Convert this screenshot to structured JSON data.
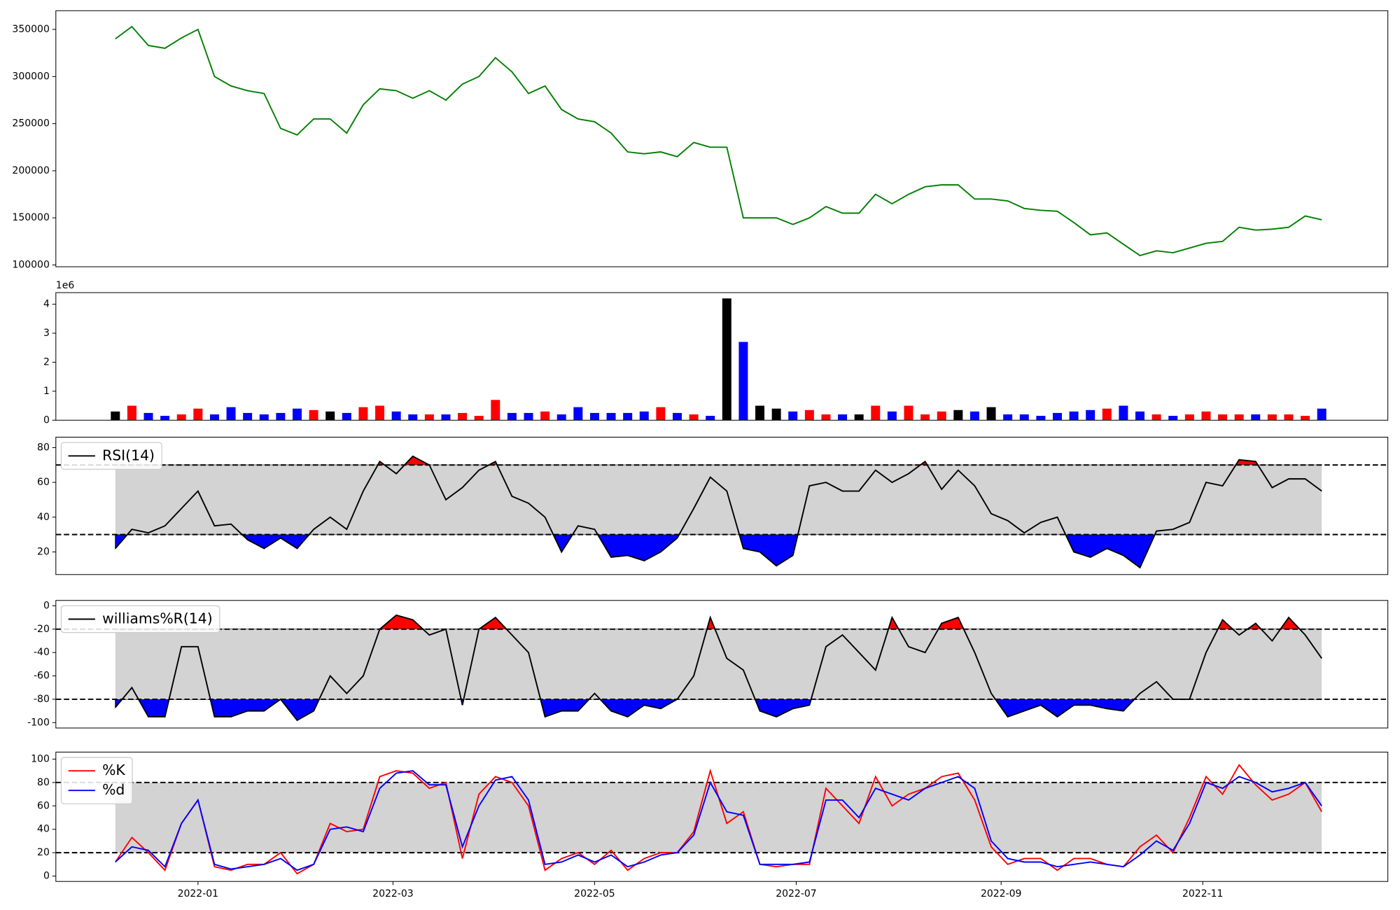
{
  "chart_data": [
    {
      "type": "line",
      "color": "green",
      "x": [
        -25,
        -20,
        -15,
        -10,
        -5,
        0,
        5,
        10,
        15,
        20,
        25,
        30,
        35,
        40,
        45,
        50,
        55,
        60,
        65,
        70,
        75,
        80,
        85,
        90,
        95,
        100,
        105,
        110,
        115,
        120,
        125,
        130,
        135,
        140,
        145,
        150,
        155,
        160,
        165,
        170,
        175,
        180,
        185,
        190,
        195,
        200,
        205,
        210,
        215,
        220,
        225,
        230,
        235,
        240,
        245,
        250,
        255,
        260,
        265,
        270,
        275,
        280,
        285,
        290,
        295,
        300,
        305,
        310,
        315,
        320,
        325,
        330,
        335,
        340
      ],
      "xlim": [
        -43,
        360
      ],
      "values": [
        340000,
        353000,
        333000,
        330000,
        341000,
        350000,
        300000,
        290000,
        285000,
        282000,
        245000,
        238000,
        255000,
        255000,
        240000,
        270000,
        287000,
        285000,
        277000,
        285000,
        275000,
        292000,
        300000,
        320000,
        305000,
        282000,
        290000,
        265000,
        255000,
        252000,
        240000,
        220000,
        218000,
        220000,
        215000,
        230000,
        225000,
        225000,
        150000,
        150000,
        150000,
        143000,
        150000,
        162000,
        155000,
        155000,
        175000,
        165000,
        175000,
        183000,
        185000,
        185000,
        170000,
        170000,
        168000,
        160000,
        158000,
        157000,
        145000,
        132000,
        134000,
        122000,
        110000,
        115000,
        113000,
        118000,
        123000,
        125000,
        140000,
        137000,
        138000,
        140000,
        152000,
        148000
      ],
      "ylim": [
        98100,
        369900
      ],
      "yticks": [
        100000,
        150000,
        200000,
        250000,
        300000,
        350000
      ]
    },
    {
      "type": "bar",
      "offset_label": "1e6",
      "up_color": "red",
      "down_color": "blue",
      "flat_color": "black",
      "values": [
        0.3,
        0.5,
        0.25,
        0.15,
        0.2,
        0.4,
        0.2,
        0.45,
        0.25,
        0.2,
        0.25,
        0.4,
        0.35,
        0.3,
        0.25,
        0.45,
        0.5,
        0.3,
        0.2,
        0.2,
        0.2,
        0.25,
        0.15,
        0.7,
        0.25,
        0.25,
        0.3,
        0.2,
        0.45,
        0.25,
        0.25,
        0.25,
        0.3,
        0.45,
        0.25,
        0.2,
        0.15,
        4.2,
        2.7,
        0.5,
        0.4,
        0.3,
        0.35,
        0.2,
        0.2,
        0.2,
        0.5,
        0.3,
        0.5,
        0.2,
        0.3,
        0.35,
        0.3,
        0.45,
        0.2,
        0.2,
        0.15,
        0.25,
        0.3,
        0.35,
        0.4,
        0.5,
        0.3,
        0.2,
        0.15,
        0.2,
        0.3,
        0.2,
        0.2,
        0.2,
        0.2,
        0.2,
        0.15,
        0.4
      ],
      "ylim": [
        0,
        4.4
      ],
      "yticks": [
        0,
        1,
        2,
        3,
        4
      ]
    },
    {
      "type": "line",
      "legend": "upper left",
      "hlines": [
        70,
        30
      ],
      "band_color": "lightgray",
      "over_color": "red",
      "under_color": "blue",
      "series": [
        {
          "name": "RSI(14)",
          "color": "black",
          "values": [
            22,
            33,
            31,
            35,
            45,
            55,
            35,
            36,
            27,
            22,
            28,
            22,
            33,
            40,
            33,
            55,
            72,
            65,
            75,
            70,
            50,
            57,
            67,
            72,
            52,
            48,
            40,
            20,
            35,
            33,
            17,
            18,
            15,
            20,
            28,
            45,
            63,
            55,
            22,
            20,
            12,
            18,
            58,
            60,
            55,
            55,
            67,
            60,
            65,
            72,
            56,
            67,
            58,
            42,
            38,
            31,
            37,
            40,
            20,
            17,
            22,
            18,
            11,
            32,
            33,
            37,
            60,
            58,
            73,
            72,
            57,
            62,
            62,
            55
          ]
        }
      ],
      "ylim": [
        7,
        86
      ],
      "yticks": [
        20,
        40,
        60,
        80
      ]
    },
    {
      "type": "line",
      "legend": "upper left",
      "hlines": [
        -20,
        -80
      ],
      "band_color": "lightgray",
      "over_color": "red",
      "under_color": "blue",
      "series": [
        {
          "name": "williams%R(14)",
          "color": "black",
          "values": [
            -87,
            -70,
            -95,
            -95,
            -35,
            -35,
            -95,
            -95,
            -90,
            -90,
            -80,
            -98,
            -90,
            -60,
            -75,
            -60,
            -20,
            -8,
            -12,
            -25,
            -20,
            -85,
            -20,
            -10,
            -25,
            -40,
            -95,
            -90,
            -90,
            -75,
            -90,
            -95,
            -85,
            -88,
            -80,
            -60,
            -10,
            -45,
            -55,
            -90,
            -95,
            -88,
            -85,
            -35,
            -25,
            -40,
            -55,
            -10,
            -35,
            -40,
            -15,
            -10,
            -40,
            -75,
            -95,
            -90,
            -85,
            -95,
            -85,
            -85,
            -88,
            -90,
            -75,
            -65,
            -80,
            -80,
            -40,
            -12,
            -25,
            -15,
            -30,
            -10,
            -25,
            -45
          ]
        }
      ],
      "ylim": [
        -104.6,
        4.6
      ],
      "yticks": [
        -100,
        -80,
        -60,
        -40,
        -20,
        0
      ]
    },
    {
      "type": "line",
      "legend": "upper left",
      "hlines": [
        80,
        20
      ],
      "band_color": "lightgray",
      "series": [
        {
          "name": "%K",
          "color": "red",
          "values": [
            12,
            33,
            20,
            5,
            45,
            65,
            8,
            5,
            10,
            10,
            20,
            2,
            10,
            45,
            38,
            40,
            85,
            90,
            88,
            75,
            80,
            15,
            70,
            85,
            80,
            60,
            5,
            15,
            20,
            10,
            22,
            5,
            15,
            20,
            20,
            38,
            90,
            45,
            55,
            10,
            8,
            10,
            10,
            75,
            60,
            45,
            85,
            60,
            70,
            75,
            85,
            88,
            65,
            25,
            10,
            15,
            15,
            5,
            15,
            15,
            10,
            8,
            25,
            35,
            20,
            50,
            85,
            70,
            95,
            78,
            65,
            70,
            80,
            55
          ]
        },
        {
          "name": "%d",
          "color": "blue",
          "values": [
            12,
            25,
            22,
            8,
            45,
            65,
            10,
            6,
            8,
            10,
            15,
            5,
            10,
            40,
            42,
            38,
            75,
            88,
            90,
            78,
            78,
            25,
            60,
            82,
            85,
            65,
            10,
            12,
            18,
            12,
            18,
            8,
            12,
            18,
            20,
            35,
            80,
            55,
            52,
            10,
            10,
            10,
            12,
            65,
            65,
            50,
            75,
            70,
            65,
            75,
            80,
            85,
            75,
            30,
            15,
            12,
            12,
            8,
            10,
            12,
            10,
            8,
            18,
            30,
            22,
            45,
            80,
            75,
            85,
            80,
            72,
            75,
            80,
            60
          ]
        }
      ],
      "ylim": [
        -4.6,
        106
      ],
      "yticks": [
        0,
        20,
        40,
        60,
        80,
        100
      ],
      "xticks": [
        {
          "value": 0,
          "label": "2022-01"
        },
        {
          "value": 59,
          "label": "2022-03"
        },
        {
          "value": 120,
          "label": "2022-05"
        },
        {
          "value": 181,
          "label": "2022-07"
        },
        {
          "value": 243,
          "label": "2022-09"
        },
        {
          "value": 304,
          "label": "2022-11"
        }
      ]
    }
  ]
}
